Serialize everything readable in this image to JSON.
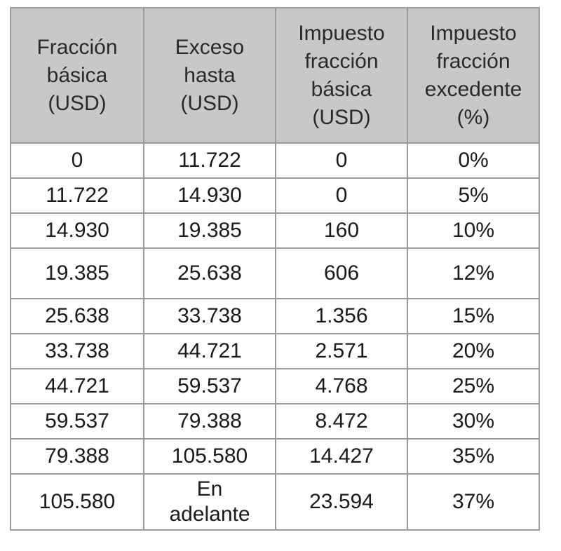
{
  "table": {
    "headers": [
      "Fracción\nbásica\n(USD)",
      "Exceso\nhasta\n(USD)",
      "Impuesto\nfracción\nbásica\n(USD)",
      "Impuesto\nfracción\nexcedente\n(%)"
    ],
    "rows": [
      [
        "0",
        "11.722",
        "0",
        "0%"
      ],
      [
        "11.722",
        "14.930",
        "0",
        "5%"
      ],
      [
        "14.930",
        "19.385",
        "160",
        "10%"
      ],
      [
        "19.385",
        "25.638",
        "606",
        "12%"
      ],
      [
        "25.638",
        "33.738",
        "1.356",
        "15%"
      ],
      [
        "33.738",
        "44.721",
        "2.571",
        "20%"
      ],
      [
        "44.721",
        "59.537",
        "4.768",
        "25%"
      ],
      [
        "59.537",
        "79.388",
        "8.472",
        "30%"
      ],
      [
        "79.388",
        "105.580",
        "14.427",
        "35%"
      ],
      [
        "105.580",
        "En\nadelante",
        "23.594",
        "37%"
      ]
    ]
  },
  "colors": {
    "header_bg": "#c8c8c8",
    "border": "#9a9a9a",
    "text": "#1a1a1a"
  }
}
